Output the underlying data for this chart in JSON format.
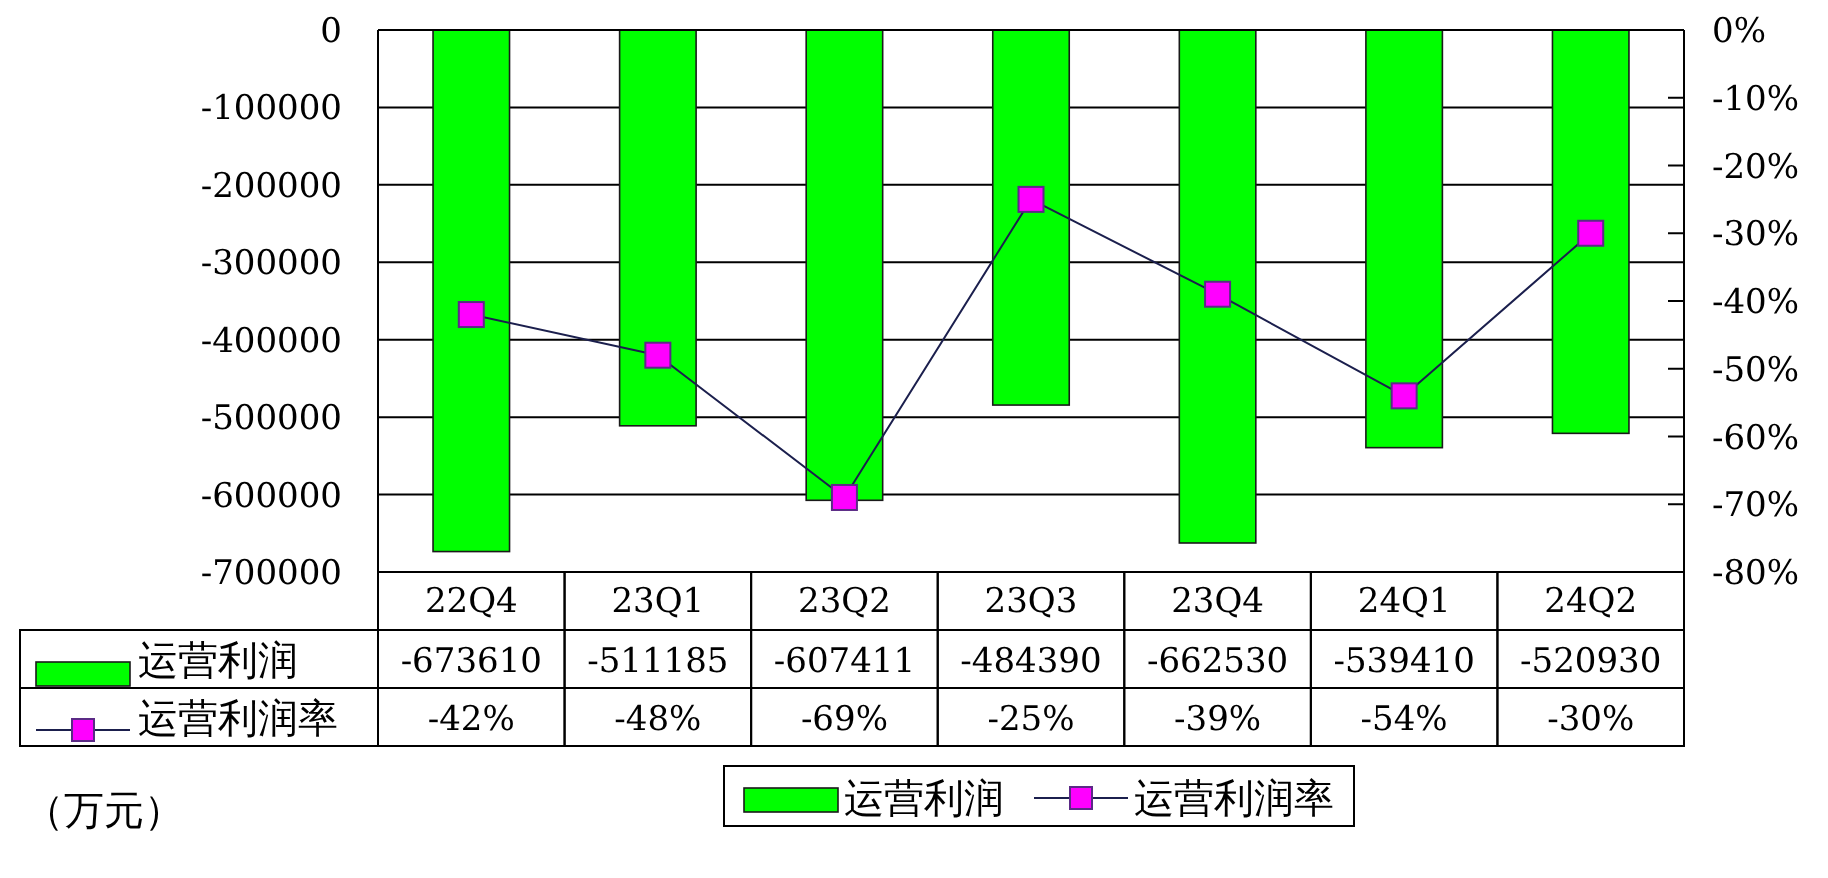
{
  "chart_data": {
    "type": "bar",
    "categories": [
      "22Q4",
      "23Q1",
      "23Q2",
      "23Q3",
      "23Q4",
      "24Q1",
      "24Q2"
    ],
    "series": [
      {
        "name": "运营利润",
        "color": "#00ff00",
        "values": [
          -673610,
          -511185,
          -607411,
          -484390,
          -662530,
          -539410,
          -520930
        ],
        "value_labels": [
          "-673610",
          "-511185",
          "-607411",
          "-484390",
          "-662530",
          "-539410",
          "-520930"
        ]
      },
      {
        "name": "运营利润率",
        "type": "line",
        "axis": "y2",
        "color": "#ff00ff",
        "values": [
          -42,
          -48,
          -69,
          -25,
          -39,
          -54,
          -30
        ],
        "value_labels": [
          "-42%",
          "-48%",
          "-69%",
          "-25%",
          "-39%",
          "-54%",
          "-30%"
        ]
      }
    ],
    "ylim": [
      -700000,
      0
    ],
    "yticks": [
      0,
      -100000,
      -200000,
      -300000,
      -400000,
      -500000,
      -600000,
      -700000
    ],
    "y2lim": [
      -80,
      0
    ],
    "y2ticks": [
      {
        "value": 0,
        "label": "0%"
      },
      {
        "value": -10,
        "label": "-10%"
      },
      {
        "value": -20,
        "label": "-20%"
      },
      {
        "value": -30,
        "label": "-30%"
      },
      {
        "value": -40,
        "label": "-40%"
      },
      {
        "value": -50,
        "label": "-50%"
      },
      {
        "value": -60,
        "label": "-60%"
      },
      {
        "value": -70,
        "label": "-70%"
      },
      {
        "value": -80,
        "label": "-80%"
      }
    ],
    "grid": "y",
    "legend": "bottom",
    "marker": "square",
    "line_style": "solid",
    "annotations": [
      "（万元）"
    ]
  }
}
